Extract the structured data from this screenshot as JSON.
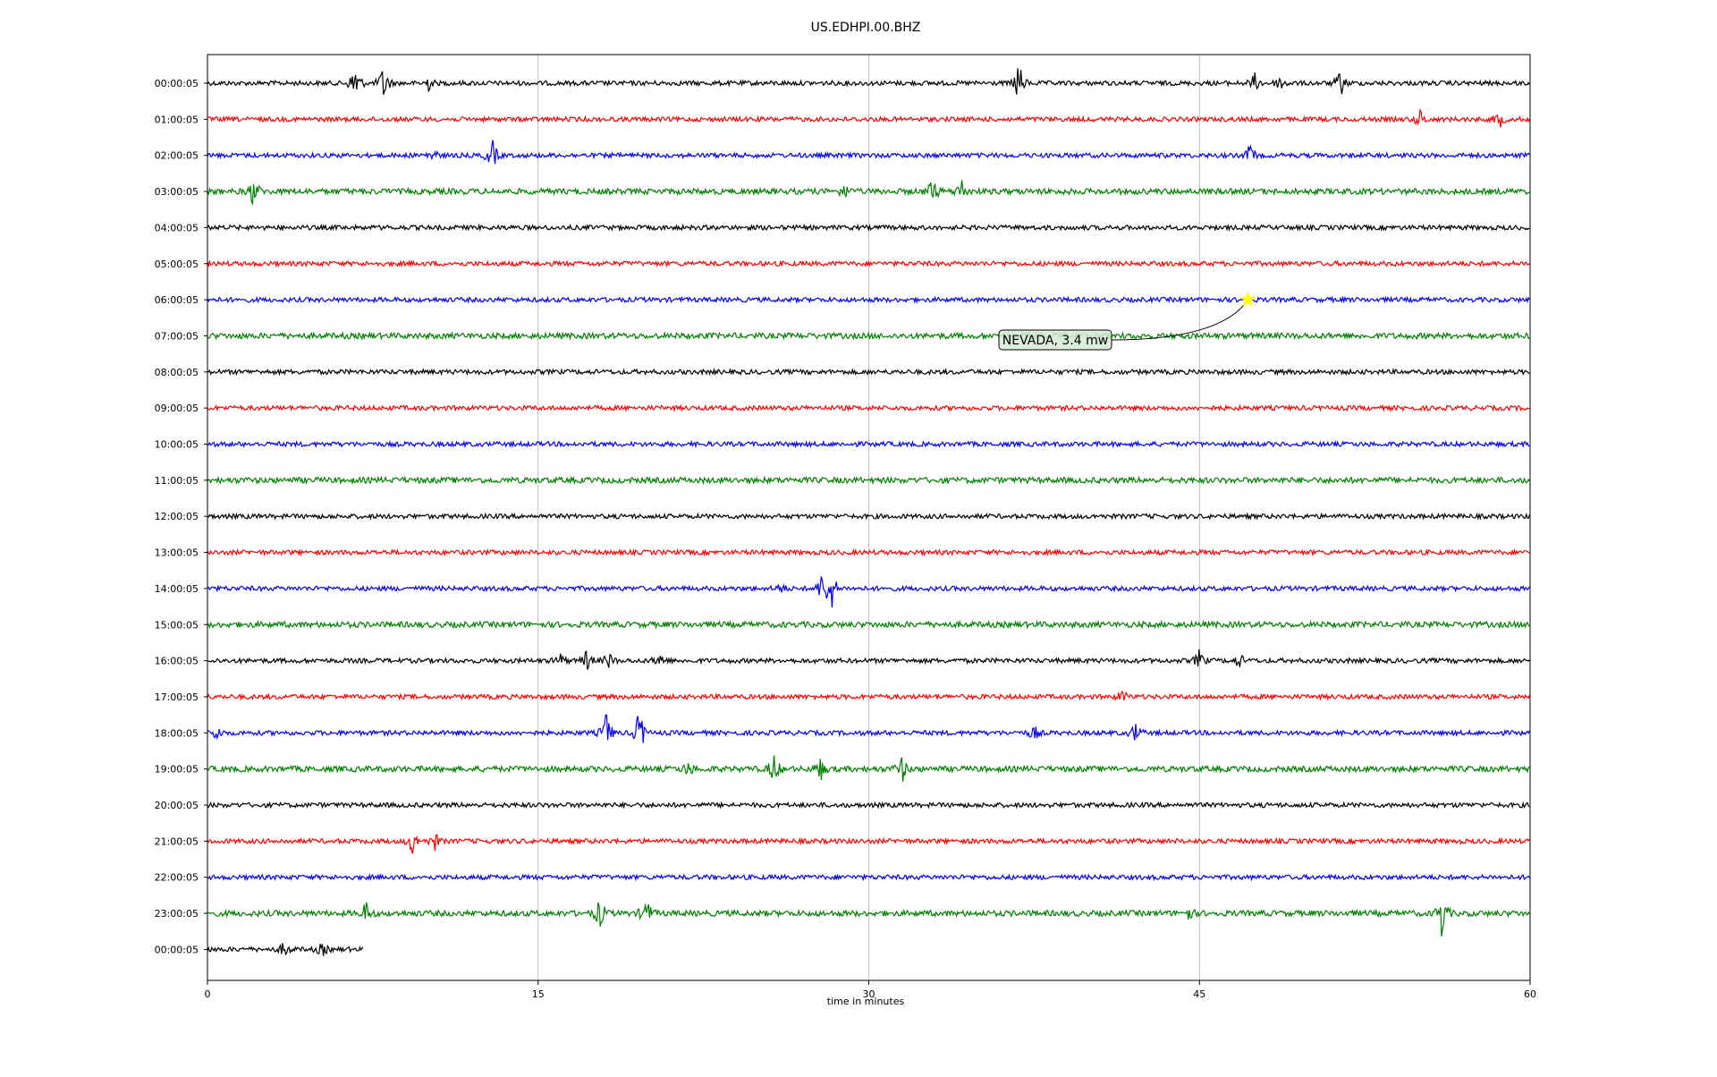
{
  "chart_data": {
    "type": "line",
    "title": "US.EDHPI.00.BHZ",
    "xlabel": "time in minutes",
    "ylabel": "",
    "xlim": [
      0,
      60
    ],
    "x_ticks": [
      "0",
      "15",
      "30",
      "45",
      "60"
    ],
    "x_tick_values": [
      0,
      15,
      30,
      45,
      60
    ],
    "grid": "vertical lines at x ticks",
    "row_labels": [
      "00:00:05",
      "01:00:05",
      "02:00:05",
      "03:00:05",
      "04:00:05",
      "05:00:05",
      "06:00:05",
      "07:00:05",
      "08:00:05",
      "09:00:05",
      "10:00:05",
      "11:00:05",
      "12:00:05",
      "13:00:05",
      "14:00:05",
      "15:00:05",
      "16:00:05",
      "17:00:05",
      "18:00:05",
      "19:00:05",
      "20:00:05",
      "21:00:05",
      "22:00:05",
      "23:00:05",
      "00:00:05"
    ],
    "row_colors": [
      "#000000",
      "#ff0000",
      "#0000ff",
      "#008000"
    ],
    "last_row_end_minute": 7.1,
    "events": [
      {
        "row": 0,
        "minute": 6.7,
        "amp": 1.0
      },
      {
        "row": 0,
        "minute": 8.0,
        "amp": 0.9
      },
      {
        "row": 0,
        "minute": 10.0,
        "amp": 0.35
      },
      {
        "row": 0,
        "minute": 36.8,
        "amp": 1.0
      },
      {
        "row": 0,
        "minute": 47.5,
        "amp": 0.4
      },
      {
        "row": 0,
        "minute": 48.7,
        "amp": 0.35
      },
      {
        "row": 0,
        "minute": 51.4,
        "amp": 0.6
      },
      {
        "row": 1,
        "minute": 55.0,
        "amp": 0.4
      },
      {
        "row": 1,
        "minute": 58.6,
        "amp": 0.4
      },
      {
        "row": 2,
        "minute": 10.2,
        "amp": 0.3
      },
      {
        "row": 2,
        "minute": 12.9,
        "amp": 0.8
      },
      {
        "row": 2,
        "minute": 47.3,
        "amp": 0.5
      },
      {
        "row": 3,
        "minute": 2.1,
        "amp": 0.7
      },
      {
        "row": 3,
        "minute": 28.9,
        "amp": 0.3
      },
      {
        "row": 3,
        "minute": 32.9,
        "amp": 0.6
      },
      {
        "row": 3,
        "minute": 34.2,
        "amp": 0.55
      },
      {
        "row": 14,
        "minute": 27.9,
        "amp": 0.8
      },
      {
        "row": 14,
        "minute": 28.3,
        "amp": 1.0
      },
      {
        "row": 14,
        "minute": 26.0,
        "amp": 0.25
      },
      {
        "row": 16,
        "minute": 16.0,
        "amp": 0.3
      },
      {
        "row": 16,
        "minute": 17.2,
        "amp": 0.45
      },
      {
        "row": 16,
        "minute": 18.2,
        "amp": 0.35
      },
      {
        "row": 16,
        "minute": 20.5,
        "amp": 0.35
      },
      {
        "row": 16,
        "minute": 45.0,
        "amp": 0.45
      },
      {
        "row": 16,
        "minute": 46.8,
        "amp": 0.35
      },
      {
        "row": 17,
        "minute": 41.5,
        "amp": 0.3
      },
      {
        "row": 18,
        "minute": 0.4,
        "amp": 0.35
      },
      {
        "row": 18,
        "minute": 18.1,
        "amp": 1.0
      },
      {
        "row": 18,
        "minute": 19.6,
        "amp": 1.2
      },
      {
        "row": 18,
        "minute": 37.5,
        "amp": 0.35
      },
      {
        "row": 18,
        "minute": 42.1,
        "amp": 0.45
      },
      {
        "row": 19,
        "minute": 25.7,
        "amp": 0.7
      },
      {
        "row": 19,
        "minute": 27.8,
        "amp": 0.5
      },
      {
        "row": 19,
        "minute": 31.5,
        "amp": 0.6
      },
      {
        "row": 19,
        "minute": 21.8,
        "amp": 0.3
      },
      {
        "row": 21,
        "minute": 9.3,
        "amp": 0.6
      },
      {
        "row": 21,
        "minute": 10.3,
        "amp": 0.4
      },
      {
        "row": 23,
        "minute": 7.2,
        "amp": 0.5
      },
      {
        "row": 23,
        "minute": 17.8,
        "amp": 0.7
      },
      {
        "row": 23,
        "minute": 19.9,
        "amp": 0.7
      },
      {
        "row": 23,
        "minute": 56.0,
        "amp": 1.1
      },
      {
        "row": 23,
        "minute": 44.5,
        "amp": 0.3
      },
      {
        "row": 24,
        "minute": 3.5,
        "amp": 0.35
      },
      {
        "row": 24,
        "minute": 5.2,
        "amp": 0.3
      }
    ],
    "annotations": [
      {
        "text": "NEVADA, 3.4 mw",
        "row": 6,
        "minute": 47.2,
        "marker": "star",
        "marker_color": "#ffff00"
      }
    ]
  }
}
